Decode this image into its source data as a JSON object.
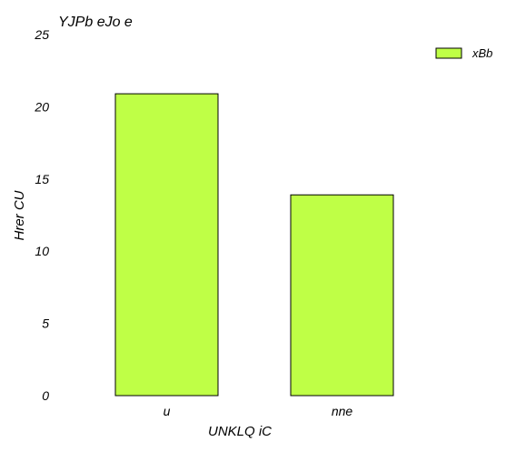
{
  "chart_data": {
    "type": "bar",
    "title": "YJPb eJo e",
    "xlabel": "UNKLQ iC",
    "ylabel": "Hrer CU",
    "categories": [
      "u",
      "nne"
    ],
    "series": [
      {
        "name": "xBb",
        "values": [
          20.9,
          13.9
        ],
        "color": "#bfff46"
      }
    ],
    "ylim": [
      0,
      25
    ],
    "yticks": [
      0,
      5,
      10,
      15,
      20,
      25
    ],
    "grid": false,
    "legend_position": "top-right"
  }
}
